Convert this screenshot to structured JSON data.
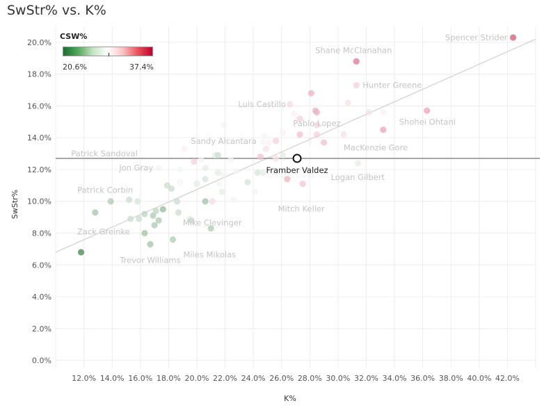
{
  "title": "SwStr% vs. K%",
  "legend": {
    "title": "CSW%",
    "min_label": "20.6%",
    "max_label": "37.4%"
  },
  "chart_data": {
    "type": "scatter",
    "title": "SwStr% vs. K%",
    "xlabel": "K%",
    "ylabel": "SwStr%",
    "xlim": [
      10.0,
      44.0
    ],
    "ylim": [
      -0.5,
      21.0
    ],
    "x_ticks": [
      "12.0%",
      "14.0%",
      "16.0%",
      "18.0%",
      "20.0%",
      "22.0%",
      "24.0%",
      "26.0%",
      "28.0%",
      "30.0%",
      "32.0%",
      "34.0%",
      "36.0%",
      "38.0%",
      "40.0%",
      "42.0%"
    ],
    "x_tick_values": [
      12,
      14,
      16,
      18,
      20,
      22,
      24,
      26,
      28,
      30,
      32,
      34,
      36,
      38,
      40,
      42
    ],
    "y_ticks": [
      "0.0%",
      "2.0%",
      "4.0%",
      "6.0%",
      "8.0%",
      "10.0%",
      "12.0%",
      "14.0%",
      "16.0%",
      "18.0%",
      "20.0%"
    ],
    "y_tick_values": [
      0,
      2,
      4,
      6,
      8,
      10,
      12,
      14,
      16,
      18,
      20
    ],
    "color_scale": {
      "metric": "CSW%",
      "min": 20.6,
      "max": 37.4,
      "low_color": "#1b6e2c",
      "mid_color": "#ffffff",
      "high_color": "#c2002e"
    },
    "reference_line": {
      "label": "Framber Valdez SwStr%",
      "y": 12.7
    },
    "trend_line": {
      "x_start": 10.0,
      "y_start": 6.8,
      "x_end": 44.0,
      "y_end": 20.2
    },
    "highlight": {
      "name": "Framber Valdez",
      "x": 27.1,
      "y": 12.7,
      "csw": 29.0
    },
    "labeled_points": [
      {
        "name": "Spencer Strider",
        "x": 42.4,
        "y": 20.3,
        "csw": 34.5
      },
      {
        "name": "Shane McClanahan",
        "x": 31.3,
        "y": 18.8,
        "csw": 33.5
      },
      {
        "name": "Hunter Greene",
        "x": 31.3,
        "y": 17.3,
        "csw": 30.5
      },
      {
        "name": "Luis Castillo",
        "x": 26.6,
        "y": 16.1,
        "csw": 30.2
      },
      {
        "name": "Pablo Lopez",
        "x": 28.5,
        "y": 15.6,
        "csw": 31.5
      },
      {
        "name": "Shohei Ohtani",
        "x": 36.3,
        "y": 15.7,
        "csw": 32.0
      },
      {
        "name": "Sandy Alcantara",
        "x": 21.9,
        "y": 14.8,
        "csw": 28.5
      },
      {
        "name": "MacKenzie Gore",
        "x": 30.4,
        "y": 14.2,
        "csw": 30.0
      },
      {
        "name": "Patrick Sandoval",
        "x": 16.2,
        "y": 13.0,
        "csw": 29.0
      },
      {
        "name": "Jon Gray",
        "x": 17.3,
        "y": 12.1,
        "csw": 28.5
      },
      {
        "name": "Logan Gilbert",
        "x": 31.4,
        "y": 12.4,
        "csw": 28.0
      },
      {
        "name": "Patrick Corbin",
        "x": 13.9,
        "y": 10.0,
        "csw": 26.0
      },
      {
        "name": "Mitch Keller",
        "x": 27.5,
        "y": 11.1,
        "csw": 30.5
      },
      {
        "name": "Mike Clevinger",
        "x": 21.1,
        "y": 10.0,
        "csw": 30.2
      },
      {
        "name": "Zack Greinke",
        "x": 12.8,
        "y": 9.3,
        "csw": 25.5
      },
      {
        "name": "Miles Mikolas",
        "x": 18.3,
        "y": 7.6,
        "csw": 26.0
      },
      {
        "name": "Trevor Williams",
        "x": 16.7,
        "y": 7.3,
        "csw": 25.5
      }
    ],
    "points": [
      {
        "x": 11.8,
        "y": 6.8,
        "csw": 22.0
      },
      {
        "x": 15.2,
        "y": 10.1,
        "csw": 27.0
      },
      {
        "x": 15.3,
        "y": 8.9,
        "csw": 27.0
      },
      {
        "x": 15.8,
        "y": 10.0,
        "csw": 27.5
      },
      {
        "x": 15.9,
        "y": 8.9,
        "csw": 27.0
      },
      {
        "x": 16.3,
        "y": 9.2,
        "csw": 26.5
      },
      {
        "x": 16.3,
        "y": 8.0,
        "csw": 25.5
      },
      {
        "x": 16.9,
        "y": 9.1,
        "csw": 26.0
      },
      {
        "x": 17.0,
        "y": 8.5,
        "csw": 26.0
      },
      {
        "x": 17.1,
        "y": 9.4,
        "csw": 26.5
      },
      {
        "x": 17.3,
        "y": 8.8,
        "csw": 26.0
      },
      {
        "x": 17.6,
        "y": 9.5,
        "csw": 25.0
      },
      {
        "x": 17.9,
        "y": 11.0,
        "csw": 27.0
      },
      {
        "x": 18.2,
        "y": 10.8,
        "csw": 27.0
      },
      {
        "x": 18.6,
        "y": 10.0,
        "csw": 27.0
      },
      {
        "x": 18.7,
        "y": 9.3,
        "csw": 27.0
      },
      {
        "x": 18.8,
        "y": 11.2,
        "csw": 28.5
      },
      {
        "x": 18.8,
        "y": 12.0,
        "csw": 28.5
      },
      {
        "x": 19.1,
        "y": 13.3,
        "csw": 29.5
      },
      {
        "x": 19.5,
        "y": 8.9,
        "csw": 28.0
      },
      {
        "x": 19.6,
        "y": 8.8,
        "csw": 27.0
      },
      {
        "x": 19.8,
        "y": 12.5,
        "csw": 30.5
      },
      {
        "x": 20.0,
        "y": 11.1,
        "csw": 28.0
      },
      {
        "x": 20.3,
        "y": 12.6,
        "csw": 28.5
      },
      {
        "x": 20.6,
        "y": 12.1,
        "csw": 28.0
      },
      {
        "x": 20.6,
        "y": 10.0,
        "csw": 25.5
      },
      {
        "x": 20.6,
        "y": 11.4,
        "csw": 27.5
      },
      {
        "x": 21.0,
        "y": 8.3,
        "csw": 26.0
      },
      {
        "x": 21.3,
        "y": 12.9,
        "csw": 28.0
      },
      {
        "x": 21.5,
        "y": 12.9,
        "csw": 27.0
      },
      {
        "x": 21.5,
        "y": 11.8,
        "csw": 28.0
      },
      {
        "x": 21.6,
        "y": 11.1,
        "csw": 28.5
      },
      {
        "x": 21.8,
        "y": 10.6,
        "csw": 28.0
      },
      {
        "x": 21.9,
        "y": 11.7,
        "csw": 28.5
      },
      {
        "x": 22.4,
        "y": 12.6,
        "csw": 28.5
      },
      {
        "x": 22.6,
        "y": 10.1,
        "csw": 28.5
      },
      {
        "x": 22.8,
        "y": 11.9,
        "csw": 28.5
      },
      {
        "x": 23.6,
        "y": 11.2,
        "csw": 27.5
      },
      {
        "x": 24.1,
        "y": 10.6,
        "csw": 28.5
      },
      {
        "x": 24.3,
        "y": 11.8,
        "csw": 27.5
      },
      {
        "x": 24.5,
        "y": 12.8,
        "csw": 31.0
      },
      {
        "x": 24.7,
        "y": 11.8,
        "csw": 28.0
      },
      {
        "x": 24.7,
        "y": 13.7,
        "csw": 28.5
      },
      {
        "x": 24.8,
        "y": 14.1,
        "csw": 28.5
      },
      {
        "x": 24.9,
        "y": 13.3,
        "csw": 30.0
      },
      {
        "x": 25.1,
        "y": 13.7,
        "csw": 29.5
      },
      {
        "x": 25.6,
        "y": 12.7,
        "csw": 30.0
      },
      {
        "x": 25.6,
        "y": 13.8,
        "csw": 30.5
      },
      {
        "x": 25.6,
        "y": 11.8,
        "csw": 28.5
      },
      {
        "x": 26.1,
        "y": 14.3,
        "csw": 29.5
      },
      {
        "x": 26.1,
        "y": 12.9,
        "csw": 28.0
      },
      {
        "x": 26.2,
        "y": 11.2,
        "csw": 29.0
      },
      {
        "x": 26.4,
        "y": 11.4,
        "csw": 31.5
      },
      {
        "x": 26.9,
        "y": 15.5,
        "csw": 29.5
      },
      {
        "x": 27.3,
        "y": 14.2,
        "csw": 31.0
      },
      {
        "x": 27.3,
        "y": 15.2,
        "csw": 30.5
      },
      {
        "x": 27.5,
        "y": 11.1,
        "csw": 30.5
      },
      {
        "x": 28.1,
        "y": 16.8,
        "csw": 31.5
      },
      {
        "x": 28.1,
        "y": 13.3,
        "csw": 29.0
      },
      {
        "x": 28.4,
        "y": 15.7,
        "csw": 31.5
      },
      {
        "x": 28.5,
        "y": 14.8,
        "csw": 30.5
      },
      {
        "x": 28.5,
        "y": 14.2,
        "csw": 30.5
      },
      {
        "x": 29.0,
        "y": 13.7,
        "csw": 31.0
      },
      {
        "x": 30.7,
        "y": 16.2,
        "csw": 30.0
      },
      {
        "x": 32.2,
        "y": 15.6,
        "csw": 30.0
      },
      {
        "x": 33.2,
        "y": 14.5,
        "csw": 32.0
      },
      {
        "x": 33.2,
        "y": 15.6,
        "csw": 29.5
      }
    ]
  }
}
